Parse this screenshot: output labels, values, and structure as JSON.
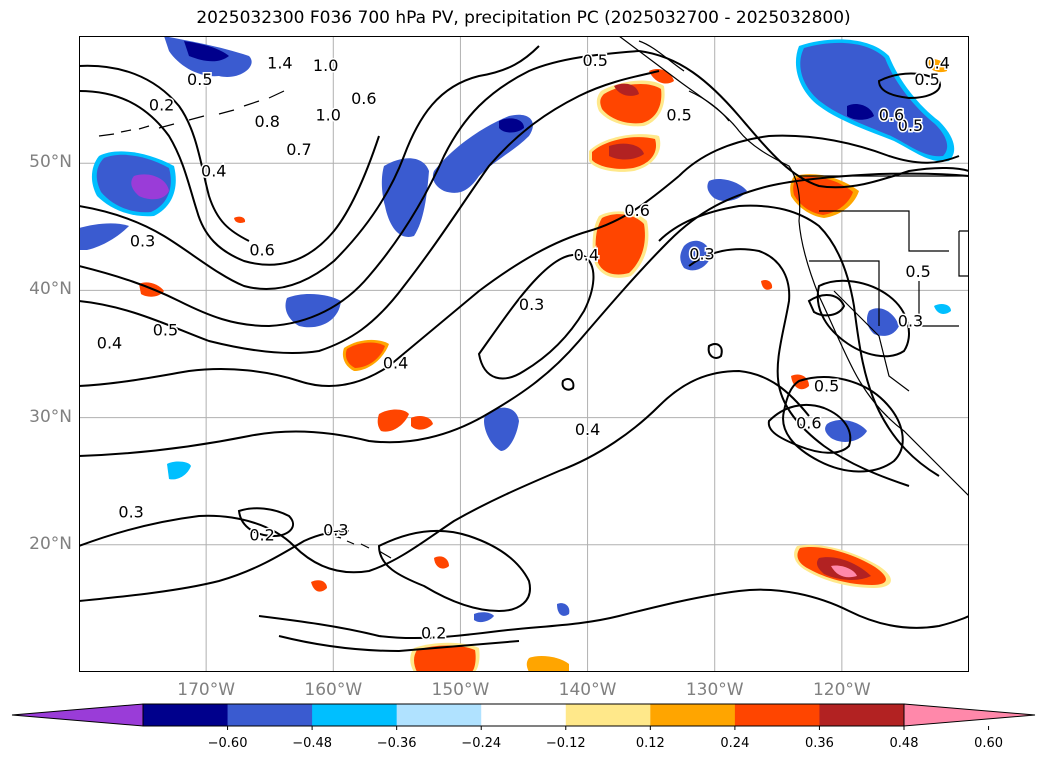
{
  "title": "2025032300 F036 700 hPa PV, precipitation PC (2025032700 - 2025032800)",
  "lat_labels": [
    {
      "text": "50°N",
      "lat": 50
    },
    {
      "text": "40°N",
      "lat": 40
    },
    {
      "text": "30°N",
      "lat": 30
    },
    {
      "text": "20°N",
      "lat": 20
    }
  ],
  "lon_labels": [
    {
      "text": "170°W",
      "lon": -170
    },
    {
      "text": "160°W",
      "lon": -160
    },
    {
      "text": "150°W",
      "lon": -150
    },
    {
      "text": "140°W",
      "lon": -140
    },
    {
      "text": "130°W",
      "lon": -130
    },
    {
      "text": "120°W",
      "lon": -120
    }
  ],
  "extent": {
    "lon_min": -180,
    "lon_max": -110,
    "lat_min": 10,
    "lat_max": 60
  },
  "contour_labels": [
    {
      "text": "0.5",
      "lon": -170.5,
      "lat": 56.5
    },
    {
      "text": "1.4",
      "lon": -164.2,
      "lat": 57.8
    },
    {
      "text": "1.0",
      "lon": -160.6,
      "lat": 57.6
    },
    {
      "text": "0.2",
      "lon": -173.5,
      "lat": 54.5
    },
    {
      "text": "0.8",
      "lon": -165.2,
      "lat": 53.2
    },
    {
      "text": "1.0",
      "lon": -160.4,
      "lat": 53.7
    },
    {
      "text": "0.6",
      "lon": -157.6,
      "lat": 55.0
    },
    {
      "text": "0.7",
      "lon": -162.7,
      "lat": 51.0
    },
    {
      "text": "0.4",
      "lon": -169.4,
      "lat": 49.3
    },
    {
      "text": "0.3",
      "lon": -175.0,
      "lat": 43.8
    },
    {
      "text": "0.6",
      "lon": -165.6,
      "lat": 43.1
    },
    {
      "text": "0.5",
      "lon": -173.2,
      "lat": 36.8
    },
    {
      "text": "0.4",
      "lon": -177.6,
      "lat": 35.8
    },
    {
      "text": "0.4",
      "lon": -155.1,
      "lat": 34.2
    },
    {
      "text": "0.3",
      "lon": -144.4,
      "lat": 38.8
    },
    {
      "text": "0.4",
      "lon": -140.1,
      "lat": 42.7
    },
    {
      "text": "0.6",
      "lon": -136.1,
      "lat": 46.2
    },
    {
      "text": "0.5",
      "lon": -139.4,
      "lat": 58.0
    },
    {
      "text": "0.5",
      "lon": -132.8,
      "lat": 53.7
    },
    {
      "text": "0.3",
      "lon": -131.0,
      "lat": 42.8
    },
    {
      "text": "0.4",
      "lon": -140.0,
      "lat": 29.0
    },
    {
      "text": "0.3",
      "lon": -175.9,
      "lat": 22.5
    },
    {
      "text": "0.2",
      "lon": -165.6,
      "lat": 20.7
    },
    {
      "text": "0.3",
      "lon": -159.8,
      "lat": 21.1
    },
    {
      "text": "0.2",
      "lon": -152.1,
      "lat": 13.0
    },
    {
      "text": "0.5",
      "lon": -121.2,
      "lat": 32.4
    },
    {
      "text": "0.6",
      "lon": -122.6,
      "lat": 29.5
    },
    {
      "text": "0.3",
      "lon": -114.6,
      "lat": 37.5
    },
    {
      "text": "0.5",
      "lon": -114.6,
      "lat": 52.9
    },
    {
      "text": "0.4",
      "lon": -112.5,
      "lat": 57.8
    },
    {
      "text": "0.5",
      "lon": -113.3,
      "lat": 56.5
    },
    {
      "text": "0.6",
      "lon": -116.1,
      "lat": 53.7
    },
    {
      "text": "0.5",
      "lon": -114.0,
      "lat": 41.4
    }
  ],
  "colorbar": {
    "boundaries": [
      -0.72,
      -0.6,
      -0.48,
      -0.36,
      -0.24,
      -0.12,
      0.12,
      0.24,
      0.36,
      0.48,
      0.6,
      0.72
    ],
    "colors": [
      "#9a3cd8",
      "#00008c",
      "#3a5bd0",
      "#00bfff",
      "#b0e2ff",
      "#ffffff",
      "#ffe88a",
      "#ffa500",
      "#ff4500",
      "#b22222",
      "#ff88aa"
    ],
    "ticks": [
      "−0.60",
      "−0.48",
      "−0.36",
      "−0.24",
      "−0.12",
      "0.12",
      "0.24",
      "0.36",
      "0.48",
      "0.60"
    ]
  }
}
